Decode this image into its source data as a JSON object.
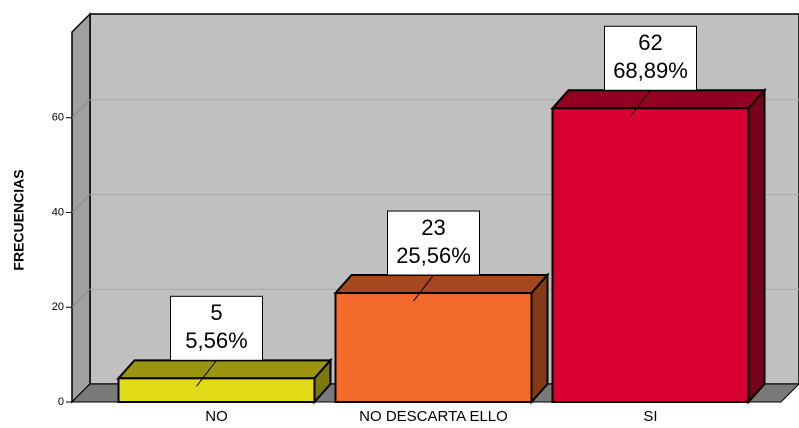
{
  "chart_data": {
    "type": "bar3d",
    "y_label": "FRECUENCIAS",
    "categories": [
      "NO",
      "NO DESCARTA ELLO",
      "SI"
    ],
    "values": [
      5,
      23,
      62
    ],
    "percentages": [
      5.56,
      25.56,
      68.89
    ],
    "percentage_labels": [
      "5,56%",
      "25,56%",
      "68,89%"
    ],
    "colors": [
      "#e2da16",
      "#f26a2c",
      "#d80030"
    ],
    "ylim": [
      0,
      80
    ],
    "yticks": [
      0,
      20,
      40,
      60
    ],
    "grid": true
  }
}
